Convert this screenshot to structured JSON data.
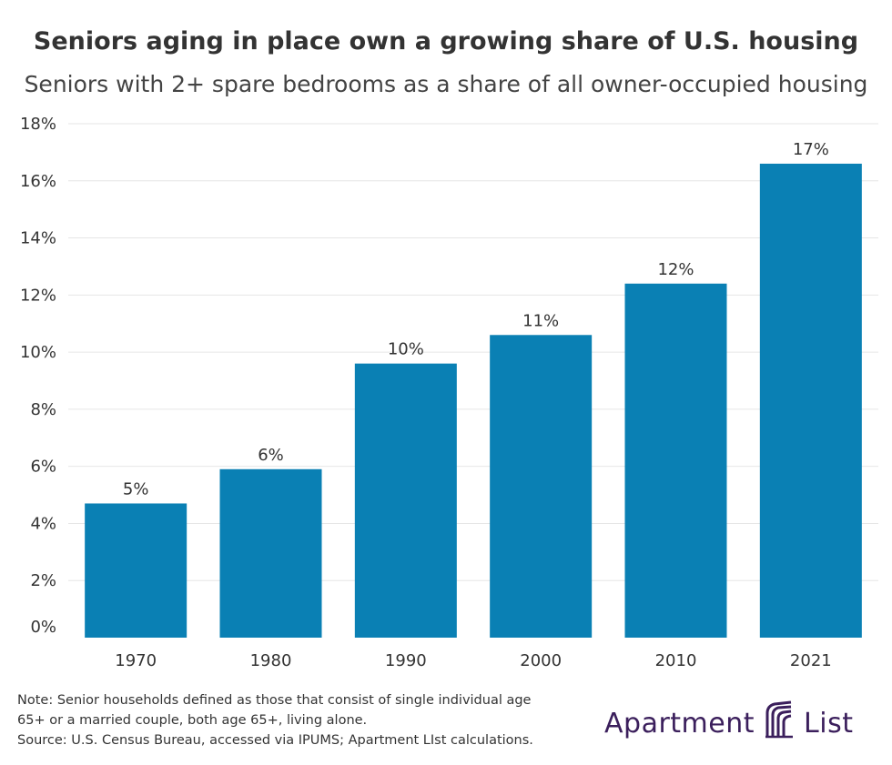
{
  "title": "Seniors aging in place own a growing share of U.S. housing",
  "subtitle": "Seniors with 2+ spare bedrooms as a share of all owner-occupied housing",
  "chart_data": {
    "type": "bar",
    "categories": [
      "1970",
      "1980",
      "1990",
      "2000",
      "2010",
      "2021"
    ],
    "values": [
      4.7,
      5.9,
      9.6,
      10.6,
      12.4,
      16.6
    ],
    "data_labels": [
      "5%",
      "6%",
      "10%",
      "11%",
      "12%",
      "17%"
    ],
    "ylim": [
      0,
      18
    ],
    "yticks": [
      0,
      2,
      4,
      6,
      8,
      10,
      12,
      14,
      16,
      18
    ],
    "ytick_labels": [
      "0%",
      "2%",
      "4%",
      "6%",
      "8%",
      "10%",
      "12%",
      "14%",
      "16%",
      "18%"
    ],
    "xlabel": "",
    "ylabel": "",
    "grid": true,
    "bar_color": "#0a80b4",
    "grid_color": "#e6e6e6"
  },
  "notes": {
    "line1": "Note: Senior households defined as those that consist of single individual age",
    "line2": "65+ or a married couple, both age 65+, living alone.",
    "line3": "Source: U.S. Census Bureau, accessed via IPUMS; Apartment LIst calculations."
  },
  "logo": {
    "word1": "Apartment",
    "word2": "List",
    "icon": "apartment-list-logo-icon",
    "color": "#3b1f5c"
  }
}
